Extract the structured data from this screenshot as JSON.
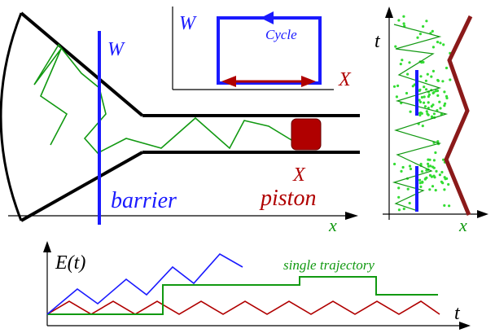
{
  "labels": {
    "W_barrier": "W",
    "barrier": "barrier",
    "X_piston": "X",
    "piston": "piston",
    "x_main": "x",
    "inset_W": "W",
    "inset_cycle": "Cycle",
    "inset_X": "X",
    "right_t": "t",
    "right_x": "x",
    "E_t": "E(t)",
    "single_trajectory": "single trajectory",
    "bottom_t": "t"
  },
  "colors": {
    "blue": "#1a1aff",
    "red": "#b00000",
    "green": "#119911",
    "black": "#000000",
    "piston_fill": "#b00000",
    "dots": "#33dd33"
  }
}
